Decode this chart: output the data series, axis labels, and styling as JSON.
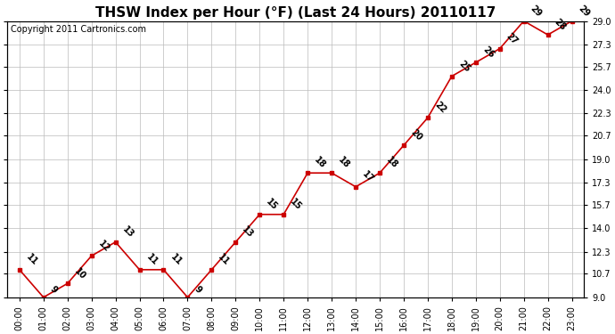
{
  "title": "THSW Index per Hour (°F) (Last 24 Hours) 20110117",
  "copyright": "Copyright 2011 Cartronics.com",
  "hours": [
    "00:00",
    "01:00",
    "02:00",
    "03:00",
    "04:00",
    "05:00",
    "06:00",
    "07:00",
    "08:00",
    "09:00",
    "10:00",
    "11:00",
    "12:00",
    "13:00",
    "14:00",
    "15:00",
    "16:00",
    "17:00",
    "18:00",
    "19:00",
    "20:00",
    "21:00",
    "22:00",
    "23:00"
  ],
  "values": [
    11,
    9,
    10,
    12,
    13,
    11,
    11,
    9,
    11,
    13,
    15,
    15,
    18,
    18,
    17,
    18,
    20,
    22,
    25,
    26,
    27,
    29,
    28,
    29
  ],
  "line_color": "#cc0000",
  "marker_color": "#cc0000",
  "bg_color": "#ffffff",
  "plot_bg_color": "#ffffff",
  "grid_color": "#bbbbbb",
  "title_fontsize": 11,
  "copyright_fontsize": 7,
  "label_fontsize": 7,
  "tick_fontsize": 7,
  "ylim_min": 9.0,
  "ylim_max": 29.0,
  "yticks": [
    9.0,
    10.7,
    12.3,
    14.0,
    15.7,
    17.3,
    19.0,
    20.7,
    22.3,
    24.0,
    25.7,
    27.3,
    29.0
  ],
  "ytick_labels": [
    "9.0",
    "10.7",
    "12.3",
    "14.0",
    "15.7",
    "17.3",
    "19.0",
    "20.7",
    "22.3",
    "24.0",
    "25.7",
    "27.3",
    "29.0"
  ]
}
